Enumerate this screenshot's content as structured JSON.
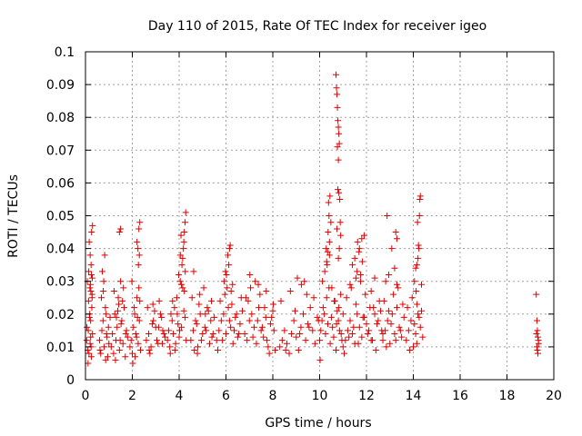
{
  "chart_data": {
    "type": "scatter",
    "title": "Day 110 of 2015, Rate Of TEC Index for receiver igeo",
    "xlabel": "GPS time / hours",
    "ylabel": "ROTI / TECUs",
    "xlim": [
      0,
      20
    ],
    "ylim": [
      0,
      0.1
    ],
    "xticks": [
      0,
      2,
      4,
      6,
      8,
      10,
      12,
      14,
      16,
      18,
      20
    ],
    "xtick_labels": [
      "0",
      "2",
      "4",
      "6",
      "8",
      "10",
      "12",
      "14",
      "16",
      "18",
      "20"
    ],
    "yticks": [
      0,
      0.01,
      0.02,
      0.03,
      0.04,
      0.05,
      0.06,
      0.07,
      0.08,
      0.09,
      0.1
    ],
    "ytick_labels": [
      "0",
      "0.01",
      "0.02",
      "0.03",
      "0.04",
      "0.05",
      "0.06",
      "0.07",
      "0.08",
      "0.09",
      "0.1"
    ],
    "grid": true,
    "marker": "+",
    "color": "#e00000",
    "series": [
      {
        "name": "ROTI",
        "x": [
          0.05,
          0.1,
          0.12,
          0.15,
          0.18,
          0.2,
          0.22,
          0.25,
          0.28,
          0.3,
          0.08,
          0.14,
          0.19,
          0.24,
          0.27,
          0.11,
          0.17,
          0.23,
          0.29,
          0.06,
          0.13,
          0.21,
          0.26,
          0.3,
          0.16,
          0.2,
          0.25,
          0.28,
          0.22,
          0.24,
          0.6,
          0.65,
          0.7,
          0.75,
          0.8,
          0.85,
          0.9,
          0.95,
          1.0,
          1.05,
          0.68,
          0.78,
          0.88,
          0.98,
          0.72,
          0.82,
          0.92,
          0.62,
          0.76,
          0.86,
          1.1,
          1.15,
          1.2,
          1.25,
          1.3,
          1.35,
          1.4,
          1.45,
          1.5,
          1.55,
          1.6,
          1.65,
          1.7,
          1.75,
          1.8,
          1.22,
          1.32,
          1.42,
          1.52,
          1.62,
          1.72,
          1.28,
          1.38,
          1.48,
          1.58,
          1.45,
          1.5,
          1.9,
          1.95,
          2.0,
          2.05,
          2.1,
          2.15,
          2.2,
          2.25,
          2.3,
          2.35,
          1.98,
          2.08,
          2.18,
          2.28,
          2.02,
          2.12,
          2.22,
          2.32,
          2.26,
          2.3,
          2.24,
          2.28,
          2.32,
          2.2,
          2.6,
          2.7,
          2.8,
          2.9,
          3.0,
          3.1,
          3.2,
          3.3,
          3.4,
          2.65,
          2.75,
          2.85,
          2.95,
          3.05,
          3.15,
          3.25,
          3.35,
          2.72,
          2.88,
          3.12,
          3.28,
          3.5,
          3.55,
          3.6,
          3.65,
          3.7,
          3.75,
          3.8,
          3.85,
          3.9,
          3.95,
          4.0,
          4.05,
          4.1,
          4.15,
          4.2,
          4.25,
          4.3,
          3.62,
          3.72,
          3.82,
          3.92,
          4.02,
          4.12,
          4.22,
          3.98,
          4.05,
          4.1,
          4.18,
          4.22,
          4.26,
          4.2,
          4.25,
          4.28,
          4.08,
          4.15,
          4.5,
          4.6,
          4.7,
          4.8,
          4.9,
          5.0,
          5.1,
          5.2,
          5.3,
          5.4,
          5.5,
          4.55,
          4.65,
          4.75,
          4.85,
          4.95,
          5.05,
          5.15,
          5.25,
          5.35,
          5.45,
          4.62,
          4.88,
          5.12,
          5.38,
          4.78,
          5.6,
          5.7,
          5.8,
          5.9,
          6.0,
          6.1,
          6.2,
          6.3,
          6.4,
          6.5,
          6.6,
          6.7,
          5.65,
          5.75,
          5.85,
          5.95,
          6.05,
          6.15,
          6.25,
          6.35,
          6.45,
          6.55,
          6.65,
          5.92,
          6.02,
          6.12,
          6.08,
          6.18,
          6.22,
          6.15,
          5.98,
          6.28,
          6.8,
          6.9,
          7.0,
          7.1,
          7.2,
          7.3,
          7.4,
          7.5,
          7.6,
          7.7,
          7.8,
          7.9,
          8.0,
          8.1,
          6.85,
          6.95,
          7.05,
          7.15,
          7.25,
          7.35,
          7.45,
          7.55,
          7.65,
          7.75,
          7.85,
          7.95,
          8.05,
          7.02,
          7.38,
          7.72,
          8.02,
          8.3,
          8.4,
          8.5,
          8.6,
          8.7,
          8.8,
          8.9,
          9.0,
          9.1,
          9.2,
          9.3,
          9.4,
          9.5,
          9.6,
          9.7,
          9.8,
          9.9,
          8.35,
          8.55,
          8.75,
          8.95,
          9.15,
          9.35,
          9.55,
          9.75,
          9.95,
          9.05,
          9.22,
          9.45,
          10.0,
          10.05,
          10.1,
          10.15,
          10.2,
          10.25,
          10.3,
          10.35,
          10.4,
          10.45,
          10.5,
          10.55,
          10.6,
          10.65,
          10.7,
          10.75,
          10.8,
          10.85,
          10.9,
          10.95,
          11.0,
          10.12,
          10.22,
          10.32,
          10.42,
          10.52,
          10.62,
          10.72,
          10.82,
          10.92,
          10.02,
          10.28,
          10.36,
          10.4,
          10.44,
          10.38,
          10.48,
          10.3,
          10.34,
          10.42,
          10.7,
          10.72,
          10.74,
          10.76,
          10.78,
          10.8,
          10.82,
          10.84,
          10.76,
          10.8,
          10.78,
          10.82,
          10.86,
          10.88,
          10.74,
          10.9,
          10.84,
          10.8,
          11.0,
          11.1,
          11.2,
          11.3,
          11.4,
          11.5,
          11.6,
          11.7,
          11.8,
          11.9,
          12.0,
          12.1,
          12.2,
          12.3,
          12.4,
          12.5,
          12.6,
          12.7,
          11.05,
          11.15,
          11.25,
          11.35,
          11.45,
          11.55,
          11.65,
          11.75,
          11.85,
          11.95,
          12.05,
          12.15,
          12.25,
          12.35,
          12.45,
          12.55,
          12.65,
          11.4,
          11.5,
          11.6,
          11.7,
          11.8,
          11.9,
          11.55,
          11.62,
          11.75,
          11.68,
          11.82,
          11.3,
          12.2,
          12.35,
          12.7,
          12.8,
          12.9,
          13.0,
          13.1,
          13.2,
          13.3,
          13.4,
          13.5,
          13.6,
          12.75,
          12.85,
          12.95,
          13.05,
          13.15,
          13.25,
          13.35,
          13.45,
          13.55,
          12.82,
          12.95,
          13.08,
          13.2,
          13.3,
          12.88,
          13.25,
          13.3,
          13.7,
          13.8,
          13.9,
          14.0,
          14.1,
          14.2,
          14.3,
          14.4,
          13.75,
          13.85,
          13.95,
          14.05,
          14.15,
          14.25,
          14.35,
          14.05,
          14.1,
          14.15,
          14.2,
          14.22,
          14.24,
          14.18,
          14.26,
          14.28,
          14.3,
          14.12,
          14.16,
          14.35,
          19.25,
          19.28,
          19.3,
          19.32,
          19.35,
          19.28,
          19.3,
          19.32,
          19.26,
          19.34
        ],
        "y": [
          0.012,
          0.009,
          0.015,
          0.008,
          0.02,
          0.011,
          0.018,
          0.007,
          0.025,
          0.014,
          0.03,
          0.033,
          0.028,
          0.035,
          0.022,
          0.005,
          0.019,
          0.027,
          0.031,
          0.016,
          0.024,
          0.029,
          0.045,
          0.047,
          0.042,
          0.038,
          0.032,
          0.026,
          0.013,
          0.01,
          0.012,
          0.008,
          0.015,
          0.018,
          0.01,
          0.022,
          0.014,
          0.007,
          0.011,
          0.019,
          0.025,
          0.03,
          0.02,
          0.016,
          0.033,
          0.038,
          0.013,
          0.009,
          0.027,
          0.006,
          0.01,
          0.014,
          0.008,
          0.02,
          0.012,
          0.016,
          0.025,
          0.009,
          0.03,
          0.018,
          0.011,
          0.022,
          0.007,
          0.015,
          0.013,
          0.027,
          0.019,
          0.023,
          0.017,
          0.028,
          0.014,
          0.006,
          0.021,
          0.012,
          0.024,
          0.045,
          0.046,
          0.01,
          0.012,
          0.008,
          0.016,
          0.02,
          0.014,
          0.025,
          0.011,
          0.018,
          0.009,
          0.03,
          0.022,
          0.013,
          0.028,
          0.005,
          0.007,
          0.019,
          0.024,
          0.035,
          0.038,
          0.04,
          0.046,
          0.048,
          0.042,
          0.012,
          0.014,
          0.01,
          0.018,
          0.016,
          0.011,
          0.02,
          0.015,
          0.013,
          0.022,
          0.008,
          0.017,
          0.021,
          0.012,
          0.024,
          0.019,
          0.014,
          0.009,
          0.023,
          0.016,
          0.011,
          0.012,
          0.015,
          0.01,
          0.02,
          0.018,
          0.014,
          0.022,
          0.011,
          0.025,
          0.017,
          0.013,
          0.03,
          0.016,
          0.028,
          0.021,
          0.019,
          0.012,
          0.008,
          0.024,
          0.009,
          0.02,
          0.015,
          0.035,
          0.027,
          0.032,
          0.038,
          0.029,
          0.04,
          0.045,
          0.033,
          0.042,
          0.048,
          0.051,
          0.044,
          0.037,
          0.012,
          0.015,
          0.018,
          0.01,
          0.02,
          0.014,
          0.016,
          0.022,
          0.011,
          0.013,
          0.019,
          0.025,
          0.009,
          0.017,
          0.023,
          0.012,
          0.028,
          0.015,
          0.021,
          0.018,
          0.014,
          0.033,
          0.026,
          0.02,
          0.024,
          0.008,
          0.012,
          0.015,
          0.018,
          0.02,
          0.014,
          0.022,
          0.016,
          0.011,
          0.019,
          0.013,
          0.017,
          0.021,
          0.009,
          0.024,
          0.012,
          0.026,
          0.028,
          0.018,
          0.023,
          0.015,
          0.02,
          0.014,
          0.025,
          0.03,
          0.032,
          0.035,
          0.038,
          0.041,
          0.027,
          0.04,
          0.033,
          0.029,
          0.014,
          0.012,
          0.018,
          0.02,
          0.016,
          0.011,
          0.022,
          0.015,
          0.013,
          0.019,
          0.01,
          0.017,
          0.021,
          0.009,
          0.025,
          0.024,
          0.028,
          0.013,
          0.03,
          0.018,
          0.026,
          0.016,
          0.022,
          0.012,
          0.008,
          0.019,
          0.015,
          0.032,
          0.029,
          0.027,
          0.023,
          0.01,
          0.012,
          0.015,
          0.011,
          0.008,
          0.014,
          0.018,
          0.013,
          0.009,
          0.016,
          0.02,
          0.012,
          0.017,
          0.022,
          0.015,
          0.011,
          0.019,
          0.024,
          0.009,
          0.027,
          0.021,
          0.014,
          0.03,
          0.016,
          0.025,
          0.018,
          0.031,
          0.029,
          0.026,
          0.012,
          0.015,
          0.018,
          0.022,
          0.02,
          0.014,
          0.025,
          0.017,
          0.028,
          0.011,
          0.019,
          0.016,
          0.013,
          0.024,
          0.009,
          0.021,
          0.018,
          0.015,
          0.026,
          0.012,
          0.02,
          0.03,
          0.033,
          0.035,
          0.038,
          0.028,
          0.024,
          0.017,
          0.022,
          0.014,
          0.006,
          0.04,
          0.045,
          0.05,
          0.056,
          0.054,
          0.048,
          0.036,
          0.039,
          0.042,
          0.093,
          0.089,
          0.087,
          0.083,
          0.079,
          0.077,
          0.075,
          0.072,
          0.071,
          0.067,
          0.058,
          0.057,
          0.055,
          0.048,
          0.046,
          0.044,
          0.04,
          0.037,
          0.01,
          0.012,
          0.015,
          0.018,
          0.014,
          0.011,
          0.02,
          0.016,
          0.013,
          0.019,
          0.017,
          0.015,
          0.012,
          0.022,
          0.009,
          0.018,
          0.021,
          0.014,
          0.008,
          0.025,
          0.013,
          0.028,
          0.016,
          0.023,
          0.011,
          0.03,
          0.019,
          0.026,
          0.014,
          0.022,
          0.012,
          0.02,
          0.017,
          0.024,
          0.015,
          0.035,
          0.037,
          0.033,
          0.04,
          0.043,
          0.044,
          0.031,
          0.042,
          0.032,
          0.039,
          0.036,
          0.029,
          0.027,
          0.031,
          0.012,
          0.015,
          0.018,
          0.011,
          0.02,
          0.014,
          0.022,
          0.016,
          0.013,
          0.019,
          0.024,
          0.01,
          0.021,
          0.017,
          0.026,
          0.012,
          0.028,
          0.015,
          0.023,
          0.03,
          0.032,
          0.04,
          0.034,
          0.029,
          0.05,
          0.045,
          0.043,
          0.012,
          0.015,
          0.018,
          0.01,
          0.014,
          0.02,
          0.016,
          0.013,
          0.022,
          0.009,
          0.025,
          0.017,
          0.011,
          0.019,
          0.021,
          0.03,
          0.034,
          0.035,
          0.037,
          0.041,
          0.04,
          0.048,
          0.05,
          0.055,
          0.056,
          0.027,
          0.023,
          0.029,
          0.026,
          0.018,
          0.015,
          0.013,
          0.011,
          0.01,
          0.009,
          0.008,
          0.014,
          0.012
        ]
      }
    ]
  }
}
